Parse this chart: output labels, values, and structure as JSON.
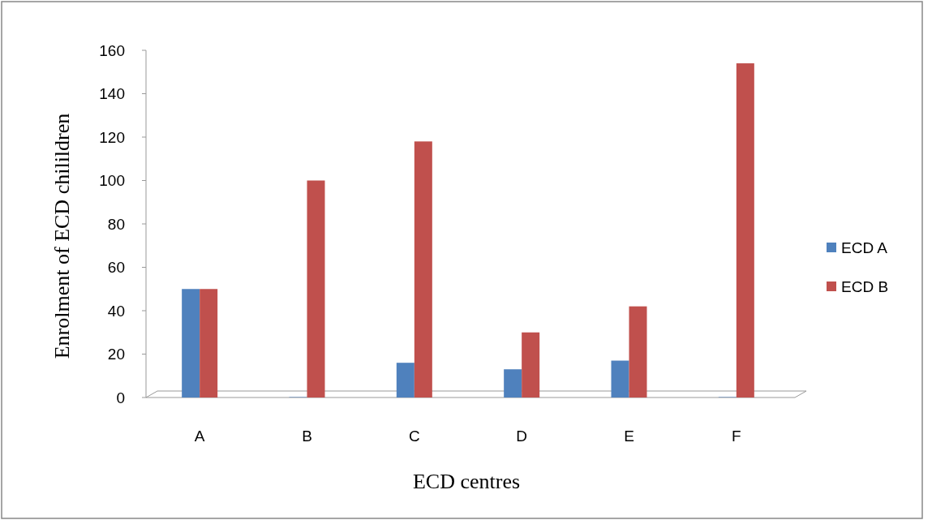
{
  "chart_data": {
    "type": "bar",
    "xlabel": "ECD centres",
    "ylabel": "Enrolment of ECD chilildren",
    "categories": [
      "A",
      "B",
      "C",
      "D",
      "E",
      "F"
    ],
    "series": [
      {
        "name": "ECD A",
        "color": "#4f81bd",
        "values": [
          50,
          0,
          16,
          13,
          17,
          0
        ]
      },
      {
        "name": "ECD B",
        "color": "#c0504d",
        "values": [
          50,
          100,
          118,
          30,
          42,
          154
        ]
      }
    ],
    "ylim": [
      0,
      160
    ],
    "yticks": [
      0,
      20,
      40,
      60,
      80,
      100,
      120,
      140,
      160
    ],
    "grid": false,
    "legend": "right"
  }
}
